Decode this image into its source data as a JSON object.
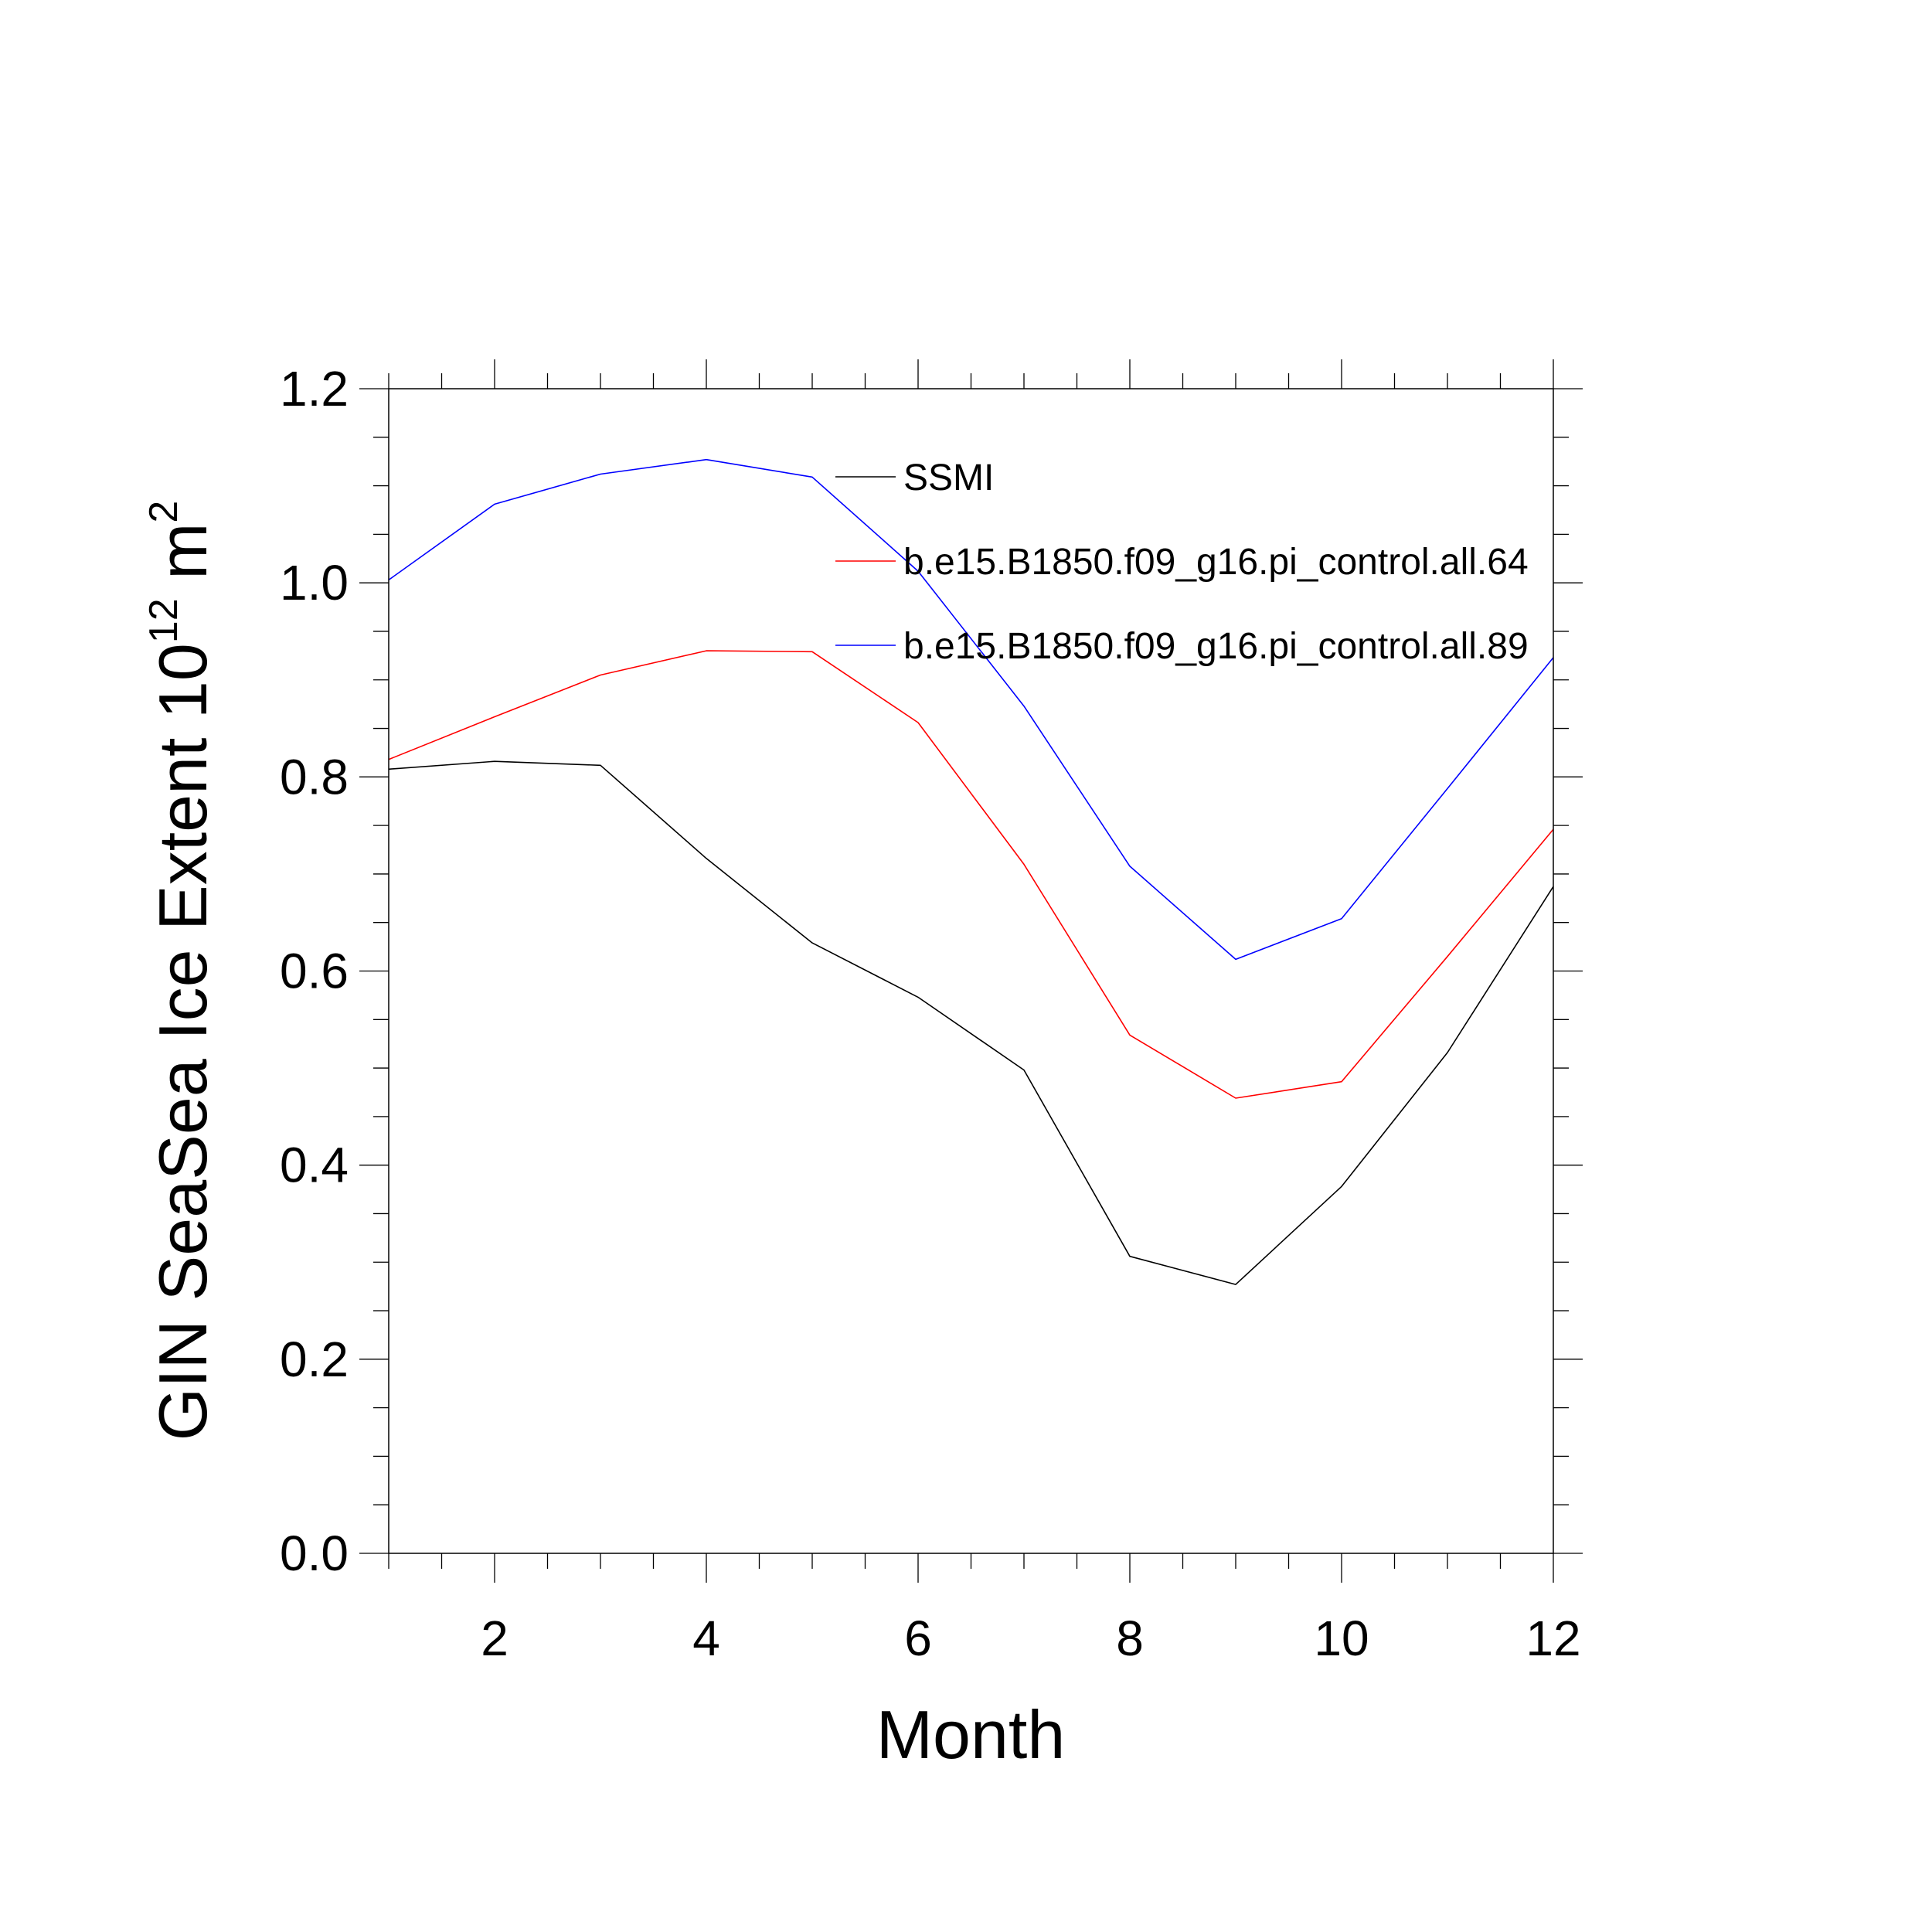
{
  "chart_data": {
    "type": "line",
    "title": "",
    "xlabel": "Month",
    "ylabel": "GIN SeaSea Ice Extent 10",
    "ylabel_sup1": "12",
    "ylabel_mid": " m",
    "ylabel_sup2": "2",
    "xlim": [
      1,
      12
    ],
    "ylim": [
      0,
      1.2
    ],
    "x": [
      1,
      2,
      3,
      4,
      5,
      6,
      7,
      8,
      9,
      10,
      11,
      12
    ],
    "xticks": [
      2,
      4,
      6,
      8,
      10,
      12
    ],
    "xtick_labels": [
      "2",
      "4",
      "6",
      "8",
      "10",
      "12"
    ],
    "yticks": [
      0.0,
      0.2,
      0.4,
      0.6,
      0.8,
      1.0,
      1.2
    ],
    "ytick_labels": [
      "0.0",
      "0.2",
      "0.4",
      "0.6",
      "0.8",
      "1.0",
      "1.2"
    ],
    "legend_position": "top-right",
    "grid": false,
    "series": [
      {
        "name": "SSMI",
        "color": "#000000",
        "values": [
          0.808,
          0.816,
          0.812,
          0.716,
          0.629,
          0.573,
          0.498,
          0.306,
          0.277,
          0.378,
          0.516,
          0.687
        ]
      },
      {
        "name": "b.e15.B1850.f09_g16.pi_control.all.64",
        "color": "#ff0000",
        "values": [
          0.818,
          0.862,
          0.905,
          0.93,
          0.929,
          0.856,
          0.71,
          0.534,
          0.469,
          0.486,
          0.615,
          0.746
        ]
      },
      {
        "name": "b.e15.B1850.f09_g16.pi_control.all.89",
        "color": "#0000ff",
        "values": [
          1.003,
          1.081,
          1.112,
          1.127,
          1.109,
          1.012,
          0.873,
          0.708,
          0.612,
          0.654,
          0.788,
          0.923
        ]
      }
    ]
  }
}
